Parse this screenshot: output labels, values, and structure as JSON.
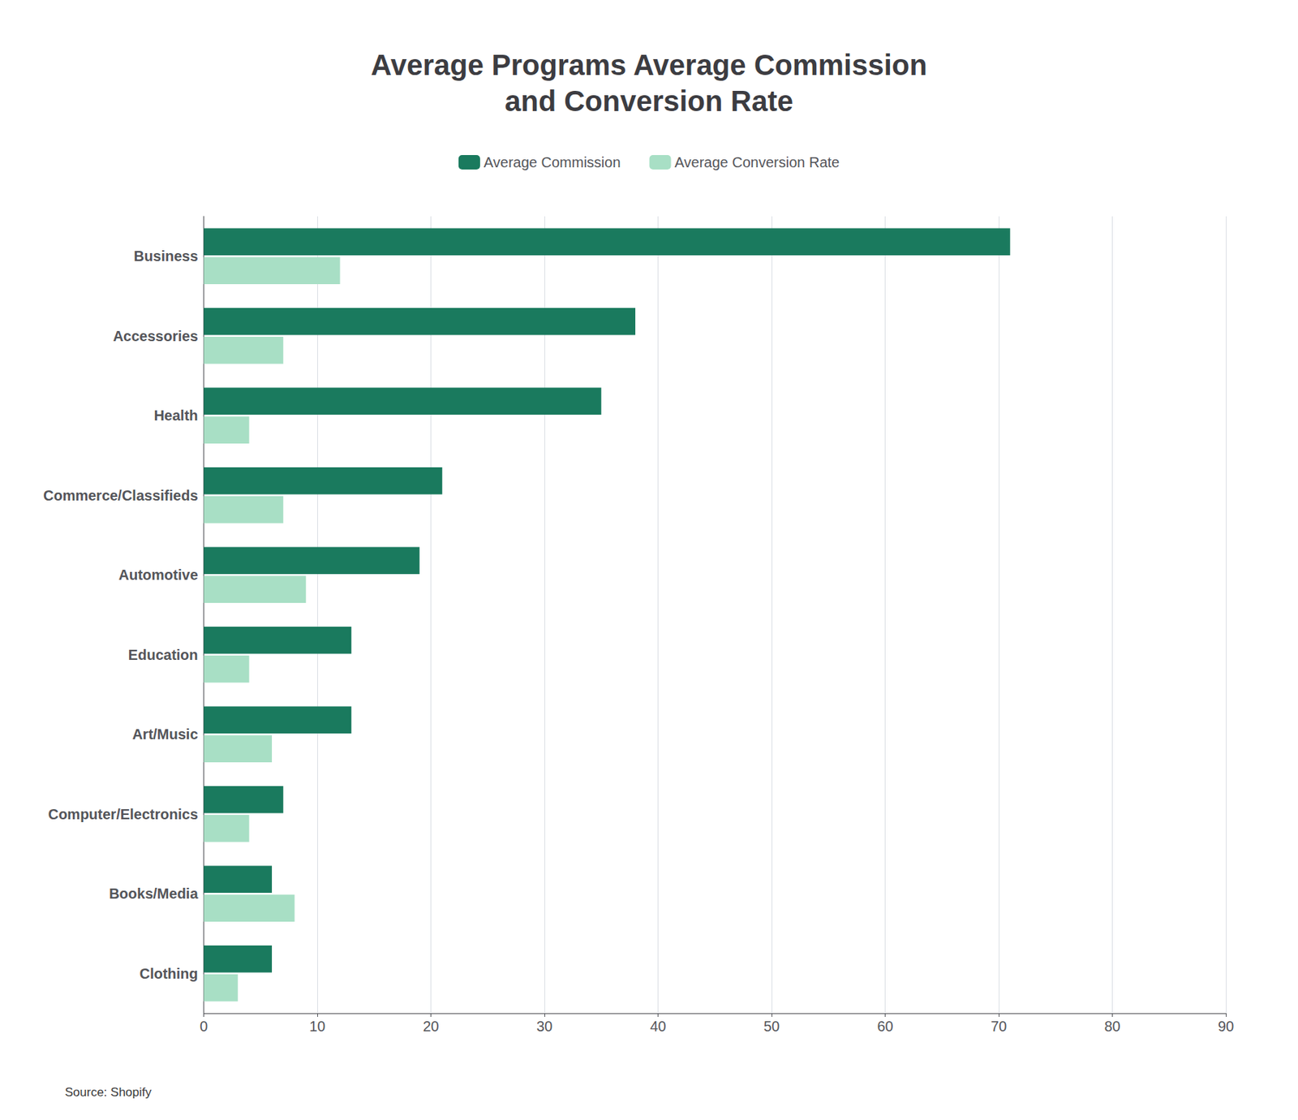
{
  "chart_data": {
    "type": "bar",
    "orientation": "horizontal",
    "title": "Average Programs Average Commission\nand Conversion Rate",
    "categories": [
      "Business",
      "Accessories",
      "Health",
      "Commerce/Classifieds",
      "Automotive",
      "Education",
      "Art/Music",
      "Computer/Electronics",
      "Books/Media",
      "Clothing"
    ],
    "series": [
      {
        "name": "Average Commission",
        "color": "#1a7a5e",
        "values": [
          71,
          38,
          35,
          21,
          19,
          13,
          13,
          7,
          6,
          6
        ]
      },
      {
        "name": "Average Conversion Rate",
        "color": "#a8dfc5",
        "values": [
          12,
          7,
          4,
          7,
          9,
          4,
          6,
          4,
          8,
          3
        ]
      }
    ],
    "xlim": [
      0,
      90
    ],
    "xticks": [
      0,
      10,
      20,
      30,
      40,
      50,
      60,
      70,
      80,
      90
    ],
    "grid": true,
    "legend": "top",
    "annotations": [
      "Source: Shopify"
    ]
  }
}
